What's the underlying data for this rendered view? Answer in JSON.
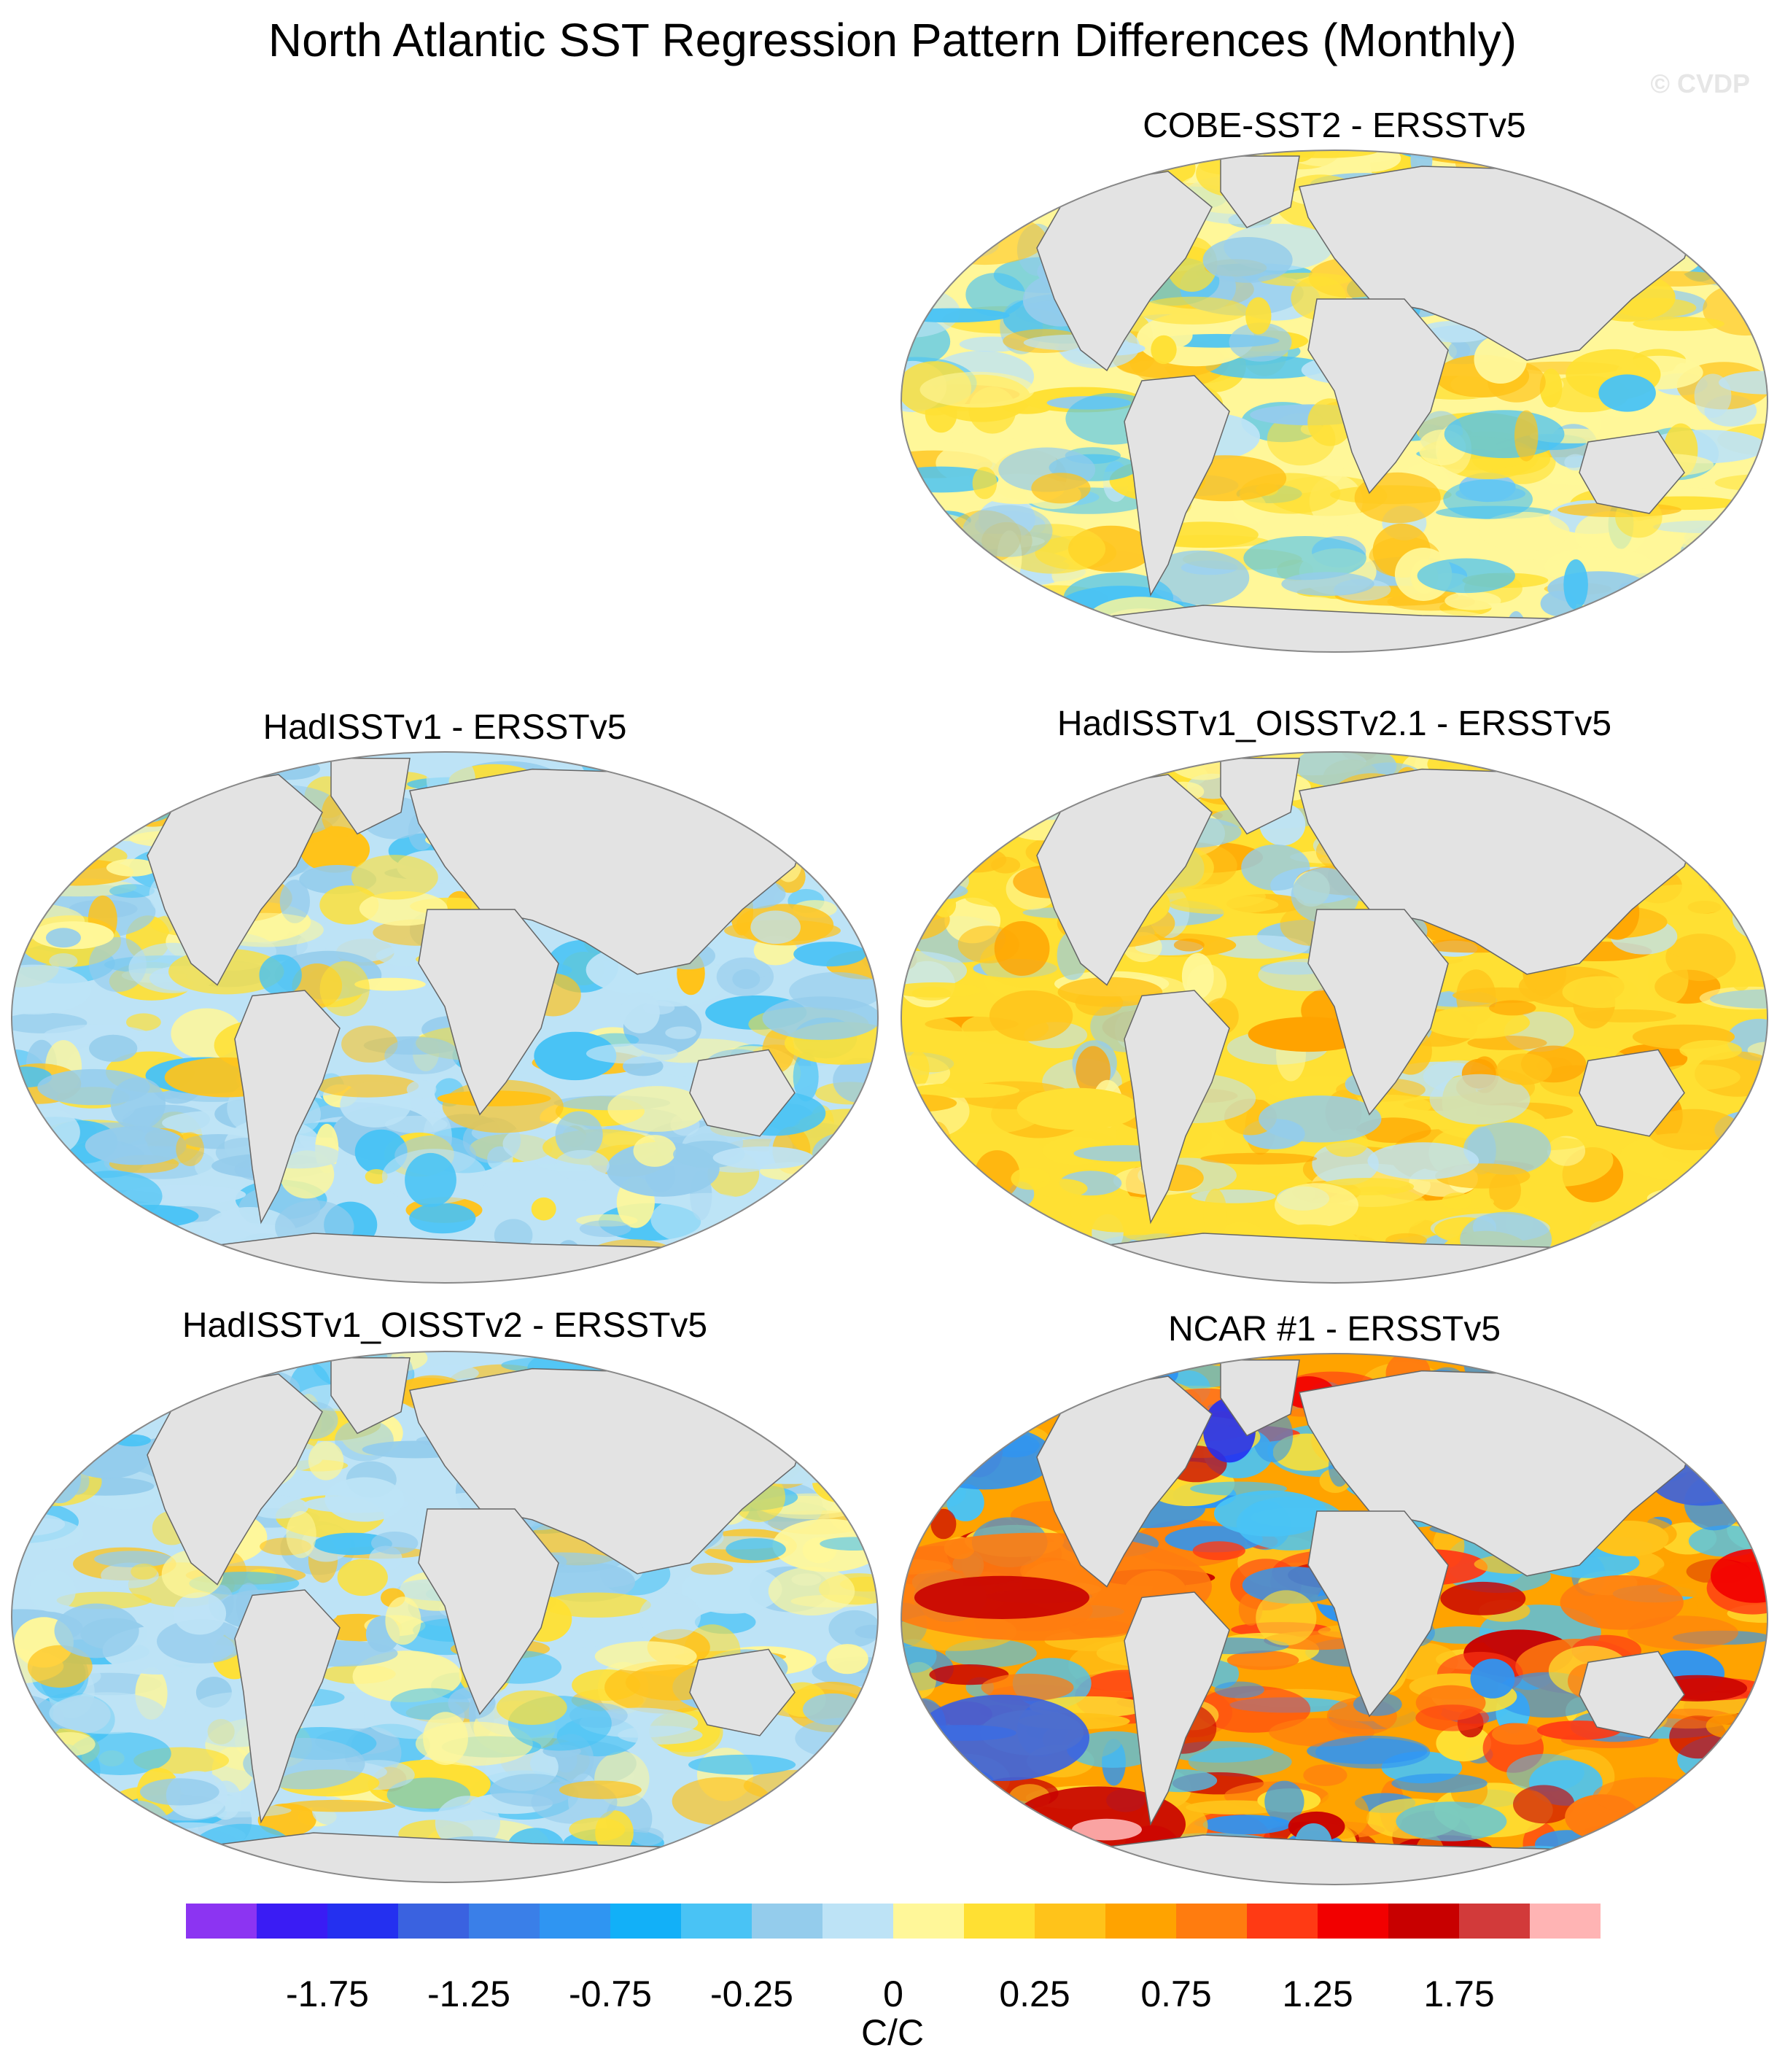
{
  "title": "North Atlantic SST Regression Pattern Differences (Monthly)",
  "watermark": "© CVDP",
  "panels": [
    {
      "id": "cobe",
      "title": "COBE-SST2 - ERSSTv5",
      "tone": "mixed"
    },
    {
      "id": "hadisst",
      "title": "HadISSTv1 - ERSSTv5",
      "tone": "cool"
    },
    {
      "id": "hadoi21",
      "title": "HadISSTv1_OISSTv2.1 - ERSSTv5",
      "tone": "warm"
    },
    {
      "id": "hadoi2",
      "title": "HadISSTv1_OISSTv2 - ERSSTv5",
      "tone": "cool"
    },
    {
      "id": "ncar",
      "title": "NCAR #1 - ERSSTv5",
      "tone": "hot"
    }
  ],
  "colorbar": {
    "colors": [
      "#8c34f2",
      "#3a1cf4",
      "#2430f0",
      "#3a62e0",
      "#3a7fe8",
      "#2f95f2",
      "#12b0f8",
      "#49c3f5",
      "#94ccec",
      "#bde3f6",
      "#fff799",
      "#ffe033",
      "#ffc31a",
      "#ffa300",
      "#ff7c0f",
      "#ff3a14",
      "#f20000",
      "#c80000",
      "#d23a3a",
      "#ffb4b4"
    ],
    "labels": [
      "-1.75",
      "-1.25",
      "-0.75",
      "-0.25",
      "0",
      "0.25",
      "0.75",
      "1.25",
      "1.75"
    ],
    "units": "C/C"
  }
}
